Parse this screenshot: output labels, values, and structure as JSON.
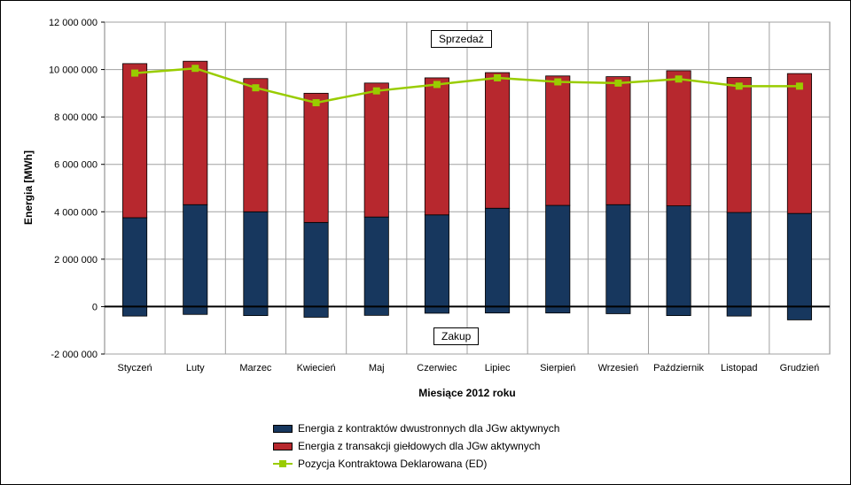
{
  "chart_data": {
    "type": "bar",
    "stacked": true,
    "xlabel": "Miesiące 2012 roku",
    "ylabel": "Energia [MWh]",
    "ylim": [
      -2000000,
      12000000
    ],
    "yticks": [
      -2000000,
      0,
      2000000,
      4000000,
      6000000,
      8000000,
      10000000,
      12000000
    ],
    "ytick_labels": [
      "-2 000 000",
      "0",
      "2 000 000",
      "4 000 000",
      "6 000 000",
      "8 000 000",
      "10 000 000",
      "12 000 000"
    ],
    "categories": [
      "Styczeń",
      "Luty",
      "Marzec",
      "Kwiecień",
      "Maj",
      "Czerwiec",
      "Lipiec",
      "Sierpień",
      "Wrzesień",
      "Październik",
      "Listopad",
      "Grudzień"
    ],
    "series": [
      {
        "name": "Energia z kontraktów dwustronnych dla JGw aktywnych",
        "color": "#17375e",
        "type": "bar",
        "values": [
          3750000,
          4300000,
          4000000,
          3550000,
          3780000,
          3870000,
          4150000,
          4270000,
          4300000,
          4250000,
          3970000,
          3930000
        ],
        "negative_values": [
          -400000,
          -330000,
          -380000,
          -450000,
          -370000,
          -280000,
          -270000,
          -270000,
          -300000,
          -380000,
          -400000,
          -560000
        ]
      },
      {
        "name": "Energia z transakcji giełdowych dla JGw aktywnych",
        "color": "#b7282e",
        "type": "bar",
        "values": [
          6500000,
          6050000,
          5620000,
          5450000,
          5650000,
          5780000,
          5720000,
          5460000,
          5400000,
          5700000,
          5700000,
          5900000
        ]
      },
      {
        "name": "Pozycja Kontraktowa Deklarowana (ED)",
        "color": "#99cc00",
        "type": "line",
        "values": [
          9850000,
          10050000,
          9230000,
          8600000,
          9100000,
          9370000,
          9650000,
          9480000,
          9430000,
          9600000,
          9300000,
          9300000
        ]
      }
    ],
    "annotations": {
      "top": "Sprzedaż",
      "bottom": "Zakup"
    },
    "grid": true,
    "legend_position": "bottom"
  }
}
